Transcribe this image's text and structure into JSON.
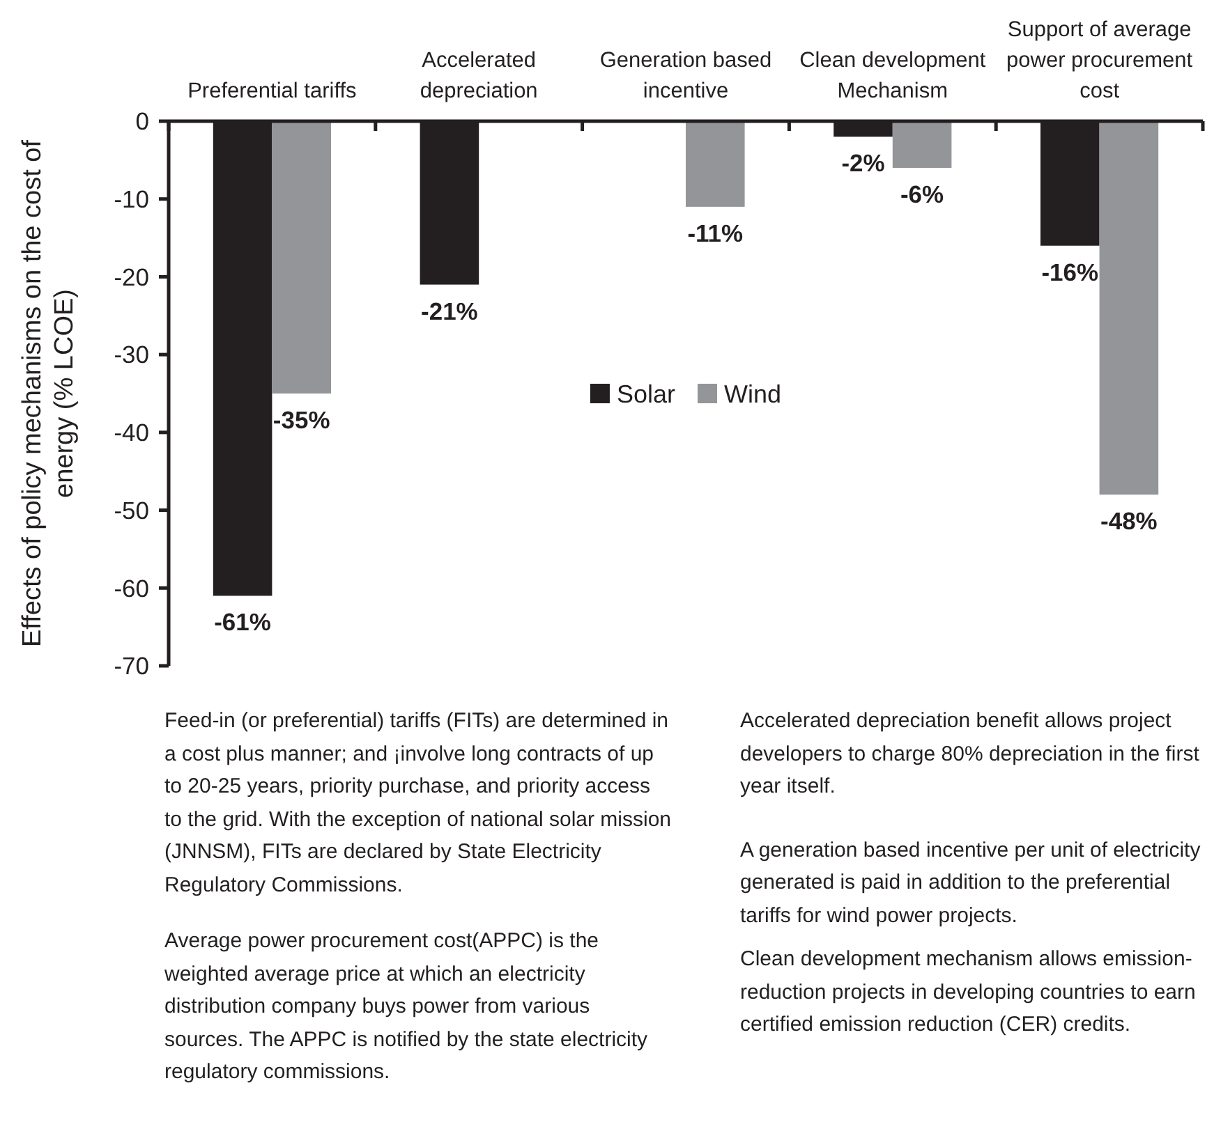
{
  "chart_data": {
    "type": "bar",
    "categories": [
      "Preferential tariffs",
      "Accelerated depreciation",
      "Generation based incentive",
      "Clean development Mechanism",
      "Support of average power procurement cost"
    ],
    "series": [
      {
        "name": "Solar",
        "color": "#231f20",
        "values": [
          -61,
          -21,
          null,
          -2,
          -16
        ],
        "value_labels": [
          "-61%",
          "-21%",
          null,
          "-2%",
          "-16%"
        ]
      },
      {
        "name": "Wind",
        "color": "#939598",
        "values": [
          -35,
          null,
          -11,
          -6,
          -48
        ],
        "value_labels": [
          "-35%",
          null,
          "-11%",
          "-6%",
          "-48%"
        ]
      }
    ],
    "ylabel": "Effects of policy mechanisms on the cost of energy (% LCOE)",
    "ylim": [
      -70,
      0
    ],
    "yticks": [
      -70,
      -60,
      -50,
      -40,
      -30,
      -20,
      -10,
      0
    ],
    "legend": "center",
    "annotations": [
      "Feed-in (or preferential) tariffs (FITs) are determined in a cost plus manner; and ¡involve long contracts of up to 20-25 years, priority purchase, and priority access to the grid. With the exception of national solar mission (JNNSM), FITs are declared by State Electricity Regulatory Commissions.",
      "Average power procurement cost(APPC) is the weighted average price at which an electricity distribution company buys power from various sources. The APPC is notified by the state electricity regulatory commissions.",
      "Accelerated depreciation benefit allows project developers to charge 80% depreciation in the first year itself.",
      "A generation based incentive per unit of electricity generated is paid in addition to the preferential tariffs for wind power projects.",
      "Clean development mechanism allows emission-reduction projects in developing countries to earn certified emission reduction (CER) credits."
    ]
  }
}
